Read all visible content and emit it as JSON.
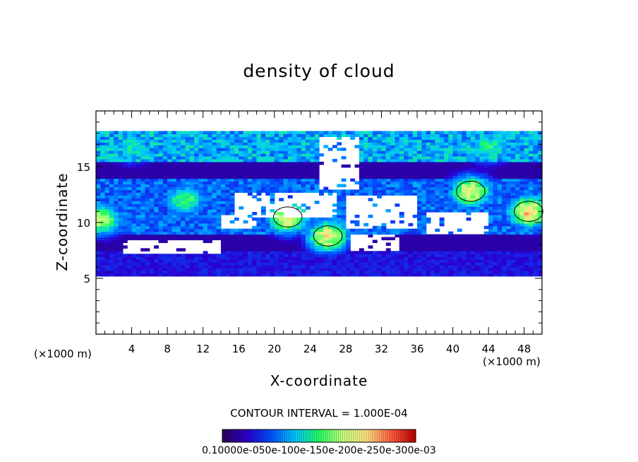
{
  "chart_data": {
    "type": "heatmap",
    "title": "density of cloud",
    "xlabel": "X-coordinate",
    "ylabel": "Z-coordinate",
    "x_unit": "(×1000 m)",
    "y_unit": "(×1000 m)",
    "xlim": [
      0,
      50
    ],
    "ylim": [
      0,
      20
    ],
    "x_ticks": [
      4,
      8,
      12,
      16,
      20,
      24,
      28,
      32,
      36,
      40,
      44,
      48
    ],
    "y_ticks": [
      5,
      10,
      15
    ],
    "contour_interval_text": "CONTOUR INTERVAL = 1.000E-04",
    "colorbar": {
      "min": 0.0001,
      "max": 0.001,
      "labels_text": "0.10000e-050e-100e-150e-200e-250e-300e-03",
      "colors": [
        "#2a0060",
        "#2a00d0",
        "#0050ff",
        "#00c8ff",
        "#20ff60",
        "#c8ff80",
        "#ffe080",
        "#ff6040",
        "#c00000"
      ]
    },
    "field": {
      "description_free": true,
      "cloud_base_km": 5.2,
      "cloud_top_km": 18.2,
      "bands": [
        {
          "z": [
            15.5,
            18.2
          ],
          "level": 0.45
        },
        {
          "z": [
            9.0,
            14.0
          ],
          "level": 0.35
        },
        {
          "z": [
            5.2,
            7.5
          ],
          "level": 0.2
        }
      ],
      "cores": [
        {
          "x": 21.5,
          "z": 10.5,
          "level": 0.82
        },
        {
          "x": 26.0,
          "z": 8.8,
          "level": 0.8
        },
        {
          "x": 42.0,
          "z": 12.8,
          "level": 0.78
        },
        {
          "x": 48.5,
          "z": 11.0,
          "level": 0.85
        },
        {
          "x": 0.5,
          "z": 10.3,
          "level": 0.7
        },
        {
          "x": 10.0,
          "z": 12.0,
          "level": 0.6
        },
        {
          "x": 44.0,
          "z": 16.8,
          "level": 0.55
        },
        {
          "x": 4.0,
          "z": 16.8,
          "level": 0.5
        }
      ],
      "clear_regions": [
        {
          "x": [
            25.0,
            29.5
          ],
          "z": [
            13.0,
            17.8
          ]
        },
        {
          "x": [
            15.5,
            27.0
          ],
          "z": [
            10.5,
            12.8
          ]
        },
        {
          "x": [
            28.0,
            36.0
          ],
          "z": [
            9.5,
            12.5
          ]
        },
        {
          "x": [
            37.0,
            44.0
          ],
          "z": [
            9.0,
            11.0
          ]
        },
        {
          "x": [
            3.0,
            14.0
          ],
          "z": [
            7.3,
            8.5
          ]
        },
        {
          "x": [
            14.0,
            18.0
          ],
          "z": [
            9.5,
            10.8
          ]
        },
        {
          "x": [
            28.5,
            34.0
          ],
          "z": [
            7.5,
            9.0
          ]
        }
      ]
    }
  }
}
